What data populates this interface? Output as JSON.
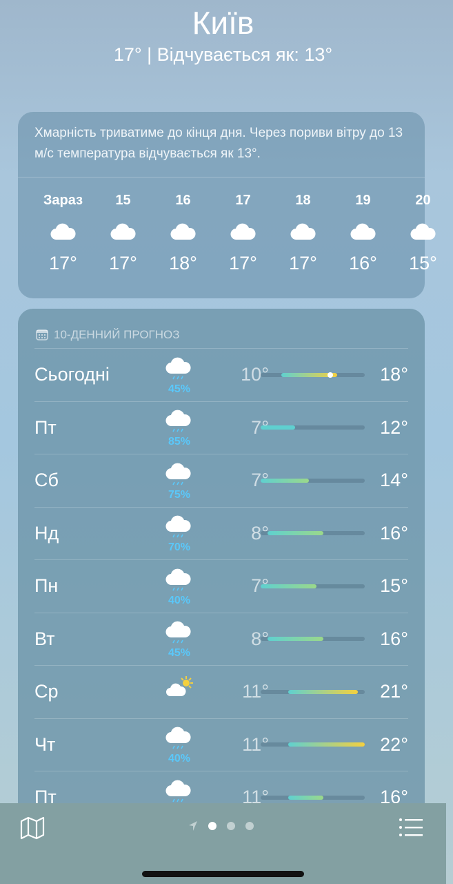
{
  "header": {
    "city": "Київ",
    "subtitle": "17°  |  Відчувається як: 13°"
  },
  "hourly": {
    "summary": "Хмарність триватиме до кінця дня. Через пориви вітру до 13 м/с температура відчувається як 13°.",
    "items": [
      {
        "time": "Зараз",
        "temp": "17°",
        "icon": "cloud-icon"
      },
      {
        "time": "15",
        "temp": "17°",
        "icon": "cloud-icon"
      },
      {
        "time": "16",
        "temp": "18°",
        "icon": "cloud-icon"
      },
      {
        "time": "17",
        "temp": "17°",
        "icon": "cloud-icon"
      },
      {
        "time": "18",
        "temp": "17°",
        "icon": "cloud-icon"
      },
      {
        "time": "19",
        "temp": "16°",
        "icon": "cloud-icon"
      },
      {
        "time": "20",
        "temp": "15°",
        "icon": "cloud-icon"
      }
    ]
  },
  "forecast": {
    "title": "10-ДЕННИЙ ПРОГНОЗ",
    "current_temp": 17,
    "range_min": 7,
    "range_max": 22,
    "days": [
      {
        "day": "Сьогодні",
        "icon": "cloud-rain-icon",
        "pct": "45%",
        "low": 10,
        "high": 18,
        "lo": "10°",
        "hi": "18°"
      },
      {
        "day": "Пт",
        "icon": "cloud-rain-icon",
        "pct": "85%",
        "low": 7,
        "high": 12,
        "lo": "7°",
        "hi": "12°"
      },
      {
        "day": "Сб",
        "icon": "cloud-rain-icon",
        "pct": "75%",
        "low": 7,
        "high": 14,
        "lo": "7°",
        "hi": "14°"
      },
      {
        "day": "Нд",
        "icon": "cloud-rain-icon",
        "pct": "70%",
        "low": 8,
        "high": 16,
        "lo": "8°",
        "hi": "16°"
      },
      {
        "day": "Пн",
        "icon": "cloud-rain-icon",
        "pct": "40%",
        "low": 7,
        "high": 15,
        "lo": "7°",
        "hi": "15°"
      },
      {
        "day": "Вт",
        "icon": "cloud-rain-icon",
        "pct": "45%",
        "low": 8,
        "high": 16,
        "lo": "8°",
        "hi": "16°"
      },
      {
        "day": "Ср",
        "icon": "sun-cloud-icon",
        "pct": "",
        "low": 11,
        "high": 21,
        "lo": "11°",
        "hi": "21°"
      },
      {
        "day": "Чт",
        "icon": "cloud-rain-icon",
        "pct": "40%",
        "low": 11,
        "high": 22,
        "lo": "11°",
        "hi": "22°"
      },
      {
        "day": "Пт",
        "icon": "cloud-rain-icon",
        "pct": "",
        "low": 11,
        "high": 16,
        "lo": "11°",
        "hi": "16°"
      }
    ]
  },
  "colors": {
    "precip": "#5ac8fa",
    "cool": "#5fd0d0",
    "mild": "#9bd88a",
    "warm": "#f4d03f"
  }
}
